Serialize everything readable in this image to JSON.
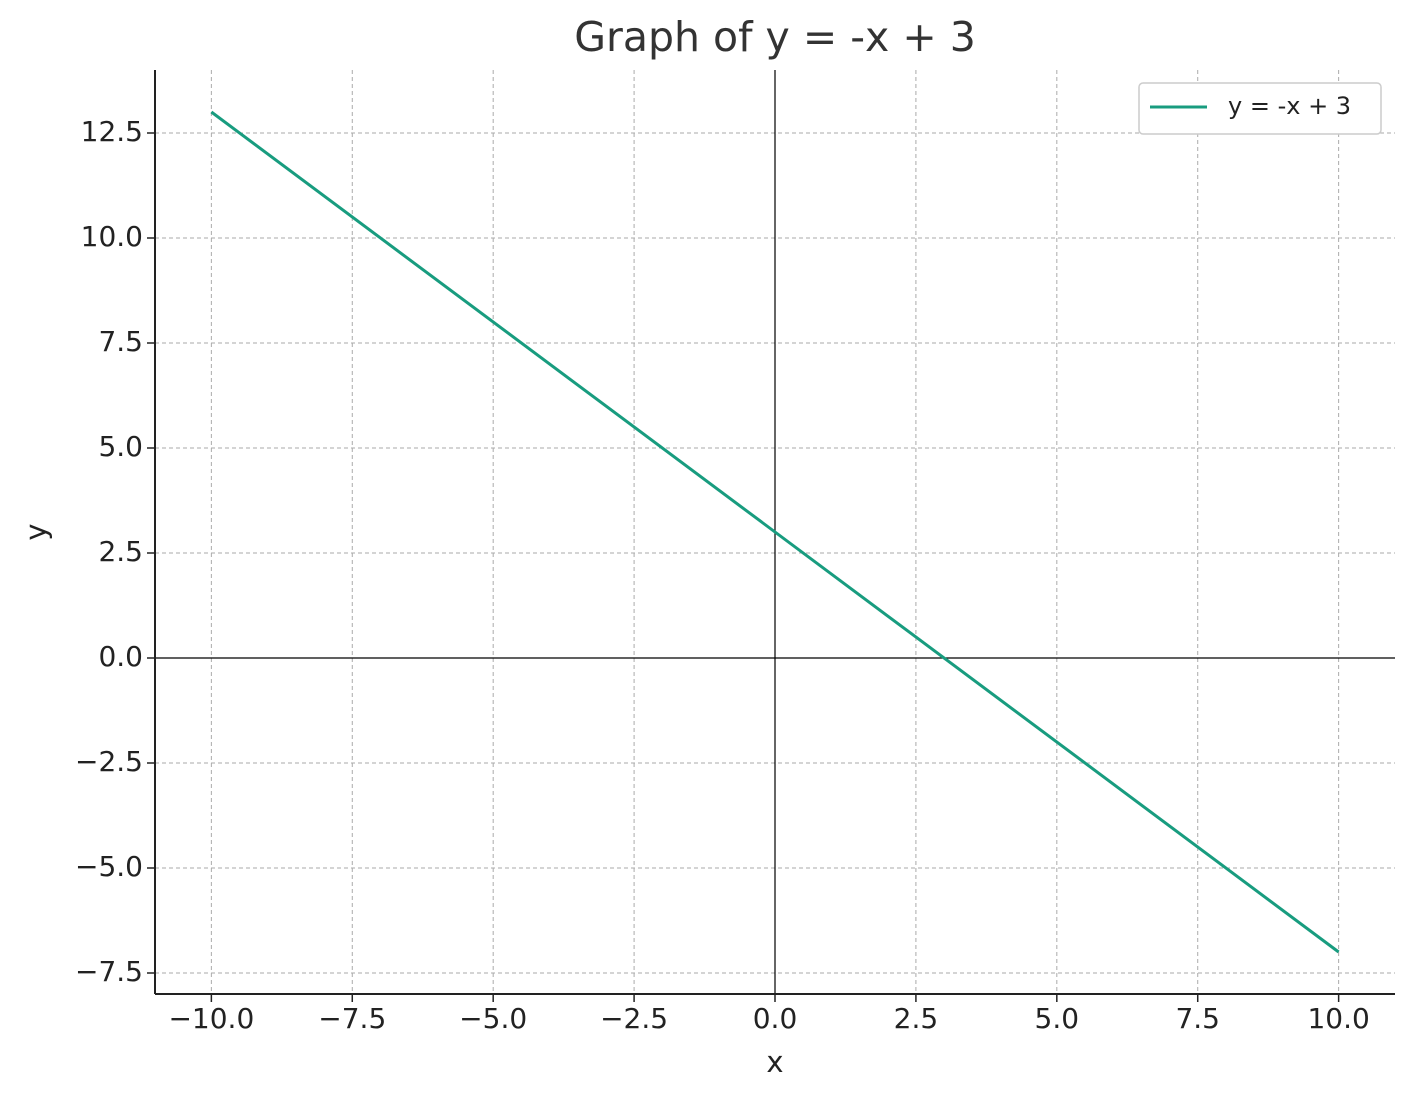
{
  "chart_data": {
    "type": "line",
    "title": "Graph of y = -x + 3",
    "x_label": "x",
    "y_label": "y",
    "x": [
      -10,
      10
    ],
    "series": [
      {
        "name": "y = -x + 3",
        "color": "#189c7f",
        "values": [
          13,
          -7
        ]
      }
    ],
    "xlim": [
      -11,
      11
    ],
    "ylim": [
      -8,
      14
    ],
    "xticks": [
      {
        "value": -10,
        "label": "−10.0"
      },
      {
        "value": -7.5,
        "label": "−7.5"
      },
      {
        "value": -5,
        "label": "−5.0"
      },
      {
        "value": -2.5,
        "label": "−2.5"
      },
      {
        "value": 0,
        "label": "0.0"
      },
      2.5,
      {
        "value": 5,
        "label": "5.0"
      },
      7.5,
      {
        "value": 10,
        "label": "10.0"
      }
    ],
    "yticks": [
      {
        "value": -7.5,
        "label": "−7.5"
      },
      {
        "value": -5,
        "label": "−5.0"
      },
      {
        "value": -2.5,
        "label": "−2.5"
      },
      {
        "value": 0,
        "label": "0.0"
      },
      2.5,
      {
        "value": 5,
        "label": "5.0"
      },
      7.5,
      {
        "value": 10,
        "label": "10.0"
      },
      12.5
    ],
    "grid": true,
    "zero_lines": true,
    "legend": "upper right"
  }
}
